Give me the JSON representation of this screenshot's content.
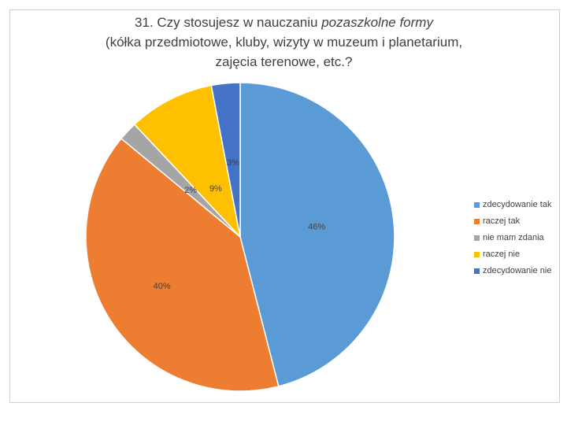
{
  "chart_data": {
    "type": "pie",
    "title": {
      "line1_prefix": "31. Czy stosujesz w nauczaniu ",
      "line1_emphasis": "pozaszkolne formy",
      "line2": "(kółka przedmiotowe, kluby, wizyty w muzeum i planetarium,",
      "line3": "zajęcia terenowe, etc.?"
    },
    "legend_position": "right",
    "slices": [
      {
        "label": "zdecydowanie tak",
        "value": 46,
        "data_label": "46%",
        "color": "#5b9bd5"
      },
      {
        "label": "raczej tak",
        "value": 40,
        "data_label": "40%",
        "color": "#ed7d31"
      },
      {
        "label": "nie mam zdania",
        "value": 2,
        "data_label": "2%",
        "color": "#a5a5a5"
      },
      {
        "label": "raczej nie",
        "value": 9,
        "data_label": "9%",
        "color": "#ffc000"
      },
      {
        "label": "zdecydowanie nie",
        "value": 3,
        "data_label": "3%",
        "color": "#4472c4"
      }
    ]
  }
}
